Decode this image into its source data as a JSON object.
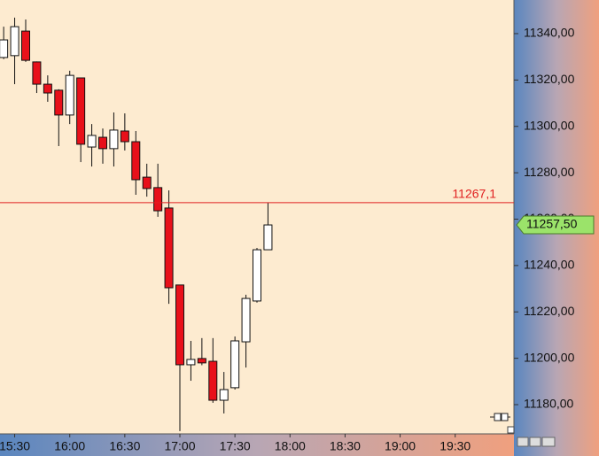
{
  "chart_data": {
    "type": "candlestick",
    "x": [
      "15:24",
      "15:30",
      "15:36",
      "15:42",
      "15:48",
      "15:54",
      "16:00",
      "16:06",
      "16:12",
      "16:18",
      "16:24",
      "16:30",
      "16:36",
      "16:42",
      "16:48",
      "16:54",
      "17:00",
      "17:06",
      "17:12",
      "17:18",
      "17:24",
      "17:30",
      "17:36",
      "17:42",
      "17:48"
    ],
    "open": [
      11329.7,
      11330.5,
      11341.1,
      11327.8,
      11318.2,
      11315.6,
      11304.9,
      11320.9,
      11291.1,
      11295.3,
      11290.4,
      11298.0,
      11293.4,
      11278.1,
      11273.6,
      11264.8,
      11231.6,
      11197.2,
      11199.9,
      11198.7,
      11181.9,
      11187.3,
      11207.1,
      11224.7,
      11246.8
    ],
    "high": [
      11343.0,
      11346.9,
      11346.1,
      11328.0,
      11322.0,
      11316.0,
      11324.0,
      11321.0,
      11301.0,
      11299.1,
      11306.0,
      11305.6,
      11298.0,
      11283.9,
      11283.9,
      11272.4,
      11231.6,
      11207.5,
      11208.7,
      11208.7,
      11194.1,
      11209.4,
      11227.4,
      11247.6,
      11267.1
    ],
    "low": [
      11329.0,
      11318.2,
      11327.8,
      11314.4,
      11310.6,
      11291.5,
      11301.0,
      11284.6,
      11282.7,
      11283.9,
      11282.7,
      11289.6,
      11270.5,
      11269.7,
      11261.0,
      11223.5,
      11168.6,
      11190.3,
      11197.0,
      11180.8,
      11176.2,
      11186.5,
      11196.0,
      11224.0,
      11246.8
    ],
    "close": [
      11337.3,
      11343.0,
      11328.5,
      11318.2,
      11314.4,
      11304.9,
      11322.0,
      11292.3,
      11296.1,
      11290.4,
      11298.4,
      11293.4,
      11277.0,
      11273.2,
      11263.6,
      11230.4,
      11197.2,
      11199.5,
      11198.0,
      11181.9,
      11186.5,
      11207.5,
      11225.8,
      11246.8,
      11257.5
    ],
    "up_color": "#ffffff",
    "down_color": "#e8101a",
    "xlim": [
      "15:22",
      "20:02"
    ],
    "xticks": [
      "15:30",
      "16:00",
      "16:30",
      "17:00",
      "17:30",
      "18:00",
      "18:30",
      "19:00",
      "19:30"
    ],
    "ylim": [
      11167.4,
      11354.5
    ],
    "yticks": [
      {
        "value": 11180,
        "label": "11180,00"
      },
      {
        "value": 11200,
        "label": "11200,00"
      },
      {
        "value": 11220,
        "label": "11220,00"
      },
      {
        "value": 11240,
        "label": "11240,00"
      },
      {
        "value": 11260,
        "label": "11260,00"
      },
      {
        "value": 11280,
        "label": "11280,00"
      },
      {
        "value": 11300,
        "label": "11300,00"
      },
      {
        "value": 11320,
        "label": "11320,00"
      },
      {
        "value": 11340,
        "label": "11340,00"
      }
    ],
    "hline": {
      "value": 11267.1,
      "label": "11267,1",
      "color": "#e02020"
    },
    "last_price": {
      "value": 11257.5,
      "label": "11257,50",
      "color": "#9be36a"
    }
  }
}
